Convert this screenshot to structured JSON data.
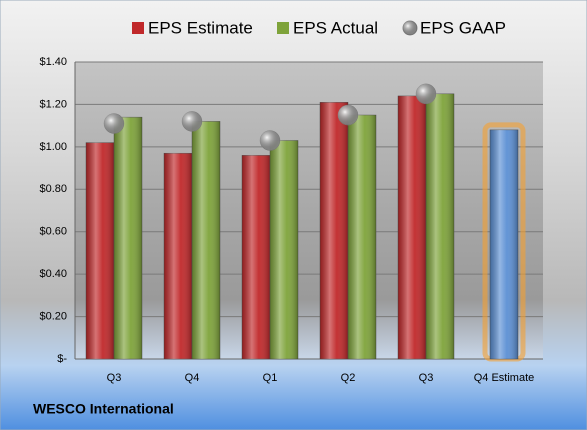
{
  "chart_data": {
    "type": "bar",
    "categories": [
      "Q3",
      "Q4",
      "Q1",
      "Q2",
      "Q3",
      "Q4 Estimate"
    ],
    "series": [
      {
        "name": "EPS Estimate",
        "color": "#c0282a",
        "values": [
          1.02,
          0.97,
          0.96,
          1.21,
          1.24,
          1.08
        ],
        "point_colors": [
          "#c0282a",
          "#c0282a",
          "#c0282a",
          "#c0282a",
          "#c0282a",
          "#5b8fd4"
        ]
      },
      {
        "name": "EPS Actual",
        "color": "#7ea33a",
        "values": [
          1.14,
          1.12,
          1.03,
          1.15,
          1.25,
          null
        ]
      },
      {
        "name": "EPS GAAP",
        "color": "#b4b4b4",
        "marker": "sphere",
        "values": [
          1.11,
          1.12,
          1.03,
          1.15,
          1.25,
          null
        ]
      }
    ],
    "ylim": [
      0,
      1.4
    ],
    "yticks": [
      {
        "value": 0,
        "label": "$-"
      },
      {
        "value": 0.2,
        "label": "$0.20"
      },
      {
        "value": 0.4,
        "label": "$0.40"
      },
      {
        "value": 0.6,
        "label": "$0.60"
      },
      {
        "value": 0.8,
        "label": "$0.80"
      },
      {
        "value": 1.0,
        "label": "$1.00"
      },
      {
        "value": 1.2,
        "label": "$1.20"
      },
      {
        "value": 1.4,
        "label": "$1.40"
      }
    ],
    "grid": true,
    "legend": "top",
    "footer": "WESCO International"
  }
}
